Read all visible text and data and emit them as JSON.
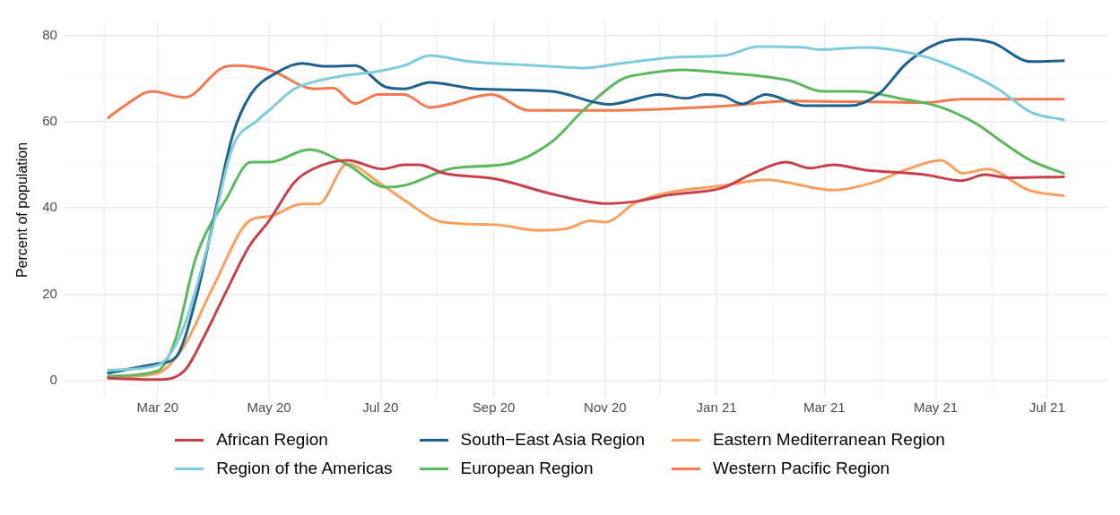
{
  "chart_data": {
    "type": "line",
    "ylabel": "Percent of population",
    "legend": "bottom",
    "grid": true,
    "marker": "none",
    "line_style": "solid",
    "xlim": [
      "2020-01-10",
      "2021-08-03"
    ],
    "ylim": [
      -4,
      83
    ],
    "xticks": [
      {
        "value": "2020-02-01",
        "label": null
      },
      {
        "value": "2020-03-01",
        "label": "Mar 20"
      },
      {
        "value": "2020-04-01",
        "label": null
      },
      {
        "value": "2020-05-01",
        "label": "May 20"
      },
      {
        "value": "2020-06-01",
        "label": null
      },
      {
        "value": "2020-07-01",
        "label": "Jul 20"
      },
      {
        "value": "2020-08-01",
        "label": null
      },
      {
        "value": "2020-09-01",
        "label": "Sep 20"
      },
      {
        "value": "2020-10-01",
        "label": null
      },
      {
        "value": "2020-11-01",
        "label": "Nov 20"
      },
      {
        "value": "2020-12-01",
        "label": null
      },
      {
        "value": "2021-01-01",
        "label": "Jan 21"
      },
      {
        "value": "2021-02-01",
        "label": null
      },
      {
        "value": "2021-03-01",
        "label": "Mar 21"
      },
      {
        "value": "2021-04-01",
        "label": null
      },
      {
        "value": "2021-05-01",
        "label": "May 21"
      },
      {
        "value": "2021-06-01",
        "label": null
      },
      {
        "value": "2021-07-01",
        "label": "Jul 21"
      }
    ],
    "yticks": [
      0,
      {
        "value": 10,
        "label": null
      },
      20,
      {
        "value": 30,
        "label": null
      },
      40,
      {
        "value": 50,
        "label": null
      },
      60,
      {
        "value": 70,
        "label": null
      },
      80
    ],
    "series": [
      {
        "name": "African Region",
        "color": "#c8414a",
        "x": [
          "2020-02-03",
          "2020-03-01",
          "2020-03-16",
          "2020-03-26",
          "2020-04-08",
          "2020-04-20",
          "2020-05-01",
          "2020-05-15",
          "2020-05-25",
          "2020-06-13",
          "2020-07-02",
          "2020-07-14",
          "2020-07-22",
          "2020-08-05",
          "2020-09-02",
          "2020-10-05",
          "2020-11-02",
          "2020-11-18",
          "2020-12-06",
          "2021-01-04",
          "2021-01-21",
          "2021-02-08",
          "2021-02-21",
          "2021-03-06",
          "2021-03-23",
          "2021-04-25",
          "2021-05-15",
          "2021-05-28",
          "2021-06-10",
          "2021-07-10"
        ],
        "values": [
          0.5,
          0.2,
          2.4,
          9.8,
          21,
          31,
          37,
          46,
          49,
          51,
          49,
          50,
          50,
          48,
          46.7,
          43,
          41,
          41.5,
          43,
          44.6,
          48,
          50.6,
          49.2,
          50,
          48.8,
          47.7,
          46.3,
          47.7,
          47,
          47.2
        ]
      },
      {
        "name": "Region of the Americas",
        "color": "#7ecbdc",
        "x": [
          "2020-02-03",
          "2020-03-01",
          "2020-03-15",
          "2020-03-30",
          "2020-04-11",
          "2020-04-25",
          "2020-05-01",
          "2020-05-15",
          "2020-06-05",
          "2020-06-30",
          "2020-07-14",
          "2020-07-28",
          "2020-08-19",
          "2020-09-25",
          "2020-10-20",
          "2020-11-10",
          "2020-12-13",
          "2021-01-05",
          "2021-01-24",
          "2021-02-18",
          "2021-02-26",
          "2021-03-23",
          "2021-04-15",
          "2021-05-06",
          "2021-06-04",
          "2021-06-22",
          "2021-07-10"
        ],
        "values": [
          2.4,
          3.5,
          12,
          33.7,
          54,
          60.4,
          62.6,
          67.6,
          70.2,
          71.7,
          73,
          75.3,
          73.9,
          73,
          72.4,
          73.5,
          75,
          75.3,
          77.4,
          77.2,
          76.7,
          77.2,
          76.1,
          73.5,
          67.6,
          62.2,
          60.4
        ]
      },
      {
        "name": "South−East Asia Region",
        "color": "#1f618d",
        "x": [
          "2020-02-03",
          "2020-03-01",
          "2020-03-11",
          "2020-03-22",
          "2020-04-01",
          "2020-04-11",
          "2020-04-21",
          "2020-05-05",
          "2020-05-19",
          "2020-06-01",
          "2020-06-17",
          "2020-07-04",
          "2020-07-14",
          "2020-07-28",
          "2020-08-22",
          "2020-10-03",
          "2020-11-03",
          "2020-12-01",
          "2020-12-15",
          "2020-12-26",
          "2021-01-05",
          "2021-01-15",
          "2021-01-28",
          "2021-02-18",
          "2021-03-15",
          "2021-03-31",
          "2021-04-15",
          "2021-05-03",
          "2021-05-16",
          "2021-06-01",
          "2021-06-22",
          "2021-07-10"
        ],
        "values": [
          1.7,
          3.9,
          5.4,
          19,
          38,
          56.7,
          66.3,
          71.3,
          73.5,
          72.8,
          73,
          68,
          67.6,
          69.1,
          67.6,
          67,
          64,
          66.3,
          65.4,
          66.3,
          65.9,
          64.1,
          66.3,
          63.7,
          63.7,
          66.5,
          73.5,
          78.3,
          79.1,
          78.3,
          73.9,
          74.1
        ]
      },
      {
        "name": "European Region",
        "color": "#5cb85c",
        "x": [
          "2020-02-03",
          "2020-03-01",
          "2020-03-11",
          "2020-03-22",
          "2020-04-08",
          "2020-04-21",
          "2020-05-01",
          "2020-05-23",
          "2020-06-13",
          "2020-07-04",
          "2020-07-14",
          "2020-08-10",
          "2020-09-08",
          "2020-10-03",
          "2020-10-20",
          "2020-11-10",
          "2020-11-26",
          "2020-12-13",
          "2021-01-05",
          "2021-02-10",
          "2021-02-28",
          "2021-03-19",
          "2021-04-11",
          "2021-05-04",
          "2021-05-24",
          "2021-06-06",
          "2021-06-22",
          "2021-07-10"
        ],
        "values": [
          1,
          2.2,
          9.8,
          28.5,
          42.4,
          50.6,
          50.6,
          53.5,
          50,
          44.8,
          45.2,
          49.2,
          50.2,
          55.4,
          62.6,
          69.8,
          71.3,
          72,
          71.3,
          69.5,
          67,
          67,
          65.4,
          63.3,
          59.3,
          55.4,
          51,
          48
        ]
      },
      {
        "name": "Eastern Mediterranean Region",
        "color": "#f9a05f",
        "x": [
          "2020-02-03",
          "2020-03-01",
          "2020-03-15",
          "2020-03-31",
          "2020-04-21",
          "2020-05-01",
          "2020-05-19",
          "2020-05-28",
          "2020-06-13",
          "2020-06-30",
          "2020-07-15",
          "2020-08-04",
          "2020-09-02",
          "2020-09-25",
          "2020-10-11",
          "2020-10-24",
          "2020-11-01",
          "2020-11-18",
          "2020-12-05",
          "2021-01-05",
          "2021-01-28",
          "2021-03-06",
          "2021-03-28",
          "2021-04-15",
          "2021-05-04",
          "2021-05-16",
          "2021-05-29",
          "2021-06-21",
          "2021-07-10"
        ],
        "values": [
          0.7,
          1.7,
          7.6,
          21.3,
          37.2,
          38,
          40.9,
          40.9,
          50.2,
          45.9,
          41.5,
          36.7,
          36.1,
          34.8,
          35.2,
          37,
          36.7,
          41.3,
          43.5,
          45.2,
          46.5,
          44.1,
          45.9,
          48.9,
          51,
          48,
          49,
          44.1,
          42.8
        ]
      },
      {
        "name": "Western Pacific Region",
        "color": "#f4794e",
        "x": [
          "2020-02-03",
          "2020-02-12",
          "2020-02-27",
          "2020-03-16",
          "2020-04-05",
          "2020-04-12",
          "2020-05-01",
          "2020-05-26",
          "2020-06-05",
          "2020-06-17",
          "2020-06-30",
          "2020-07-14",
          "2020-07-28",
          "2020-08-31",
          "2020-09-20",
          "2020-10-28",
          "2021-01-05",
          "2021-02-10",
          "2021-04-25",
          "2021-05-15",
          "2021-07-10"
        ],
        "values": [
          60.9,
          63.7,
          67,
          65.6,
          72.4,
          73,
          72,
          67.6,
          67.8,
          64.2,
          66.3,
          66.3,
          63.3,
          66.3,
          62.6,
          62.6,
          63.6,
          64.8,
          64.4,
          65.2,
          65.2
        ]
      }
    ]
  }
}
